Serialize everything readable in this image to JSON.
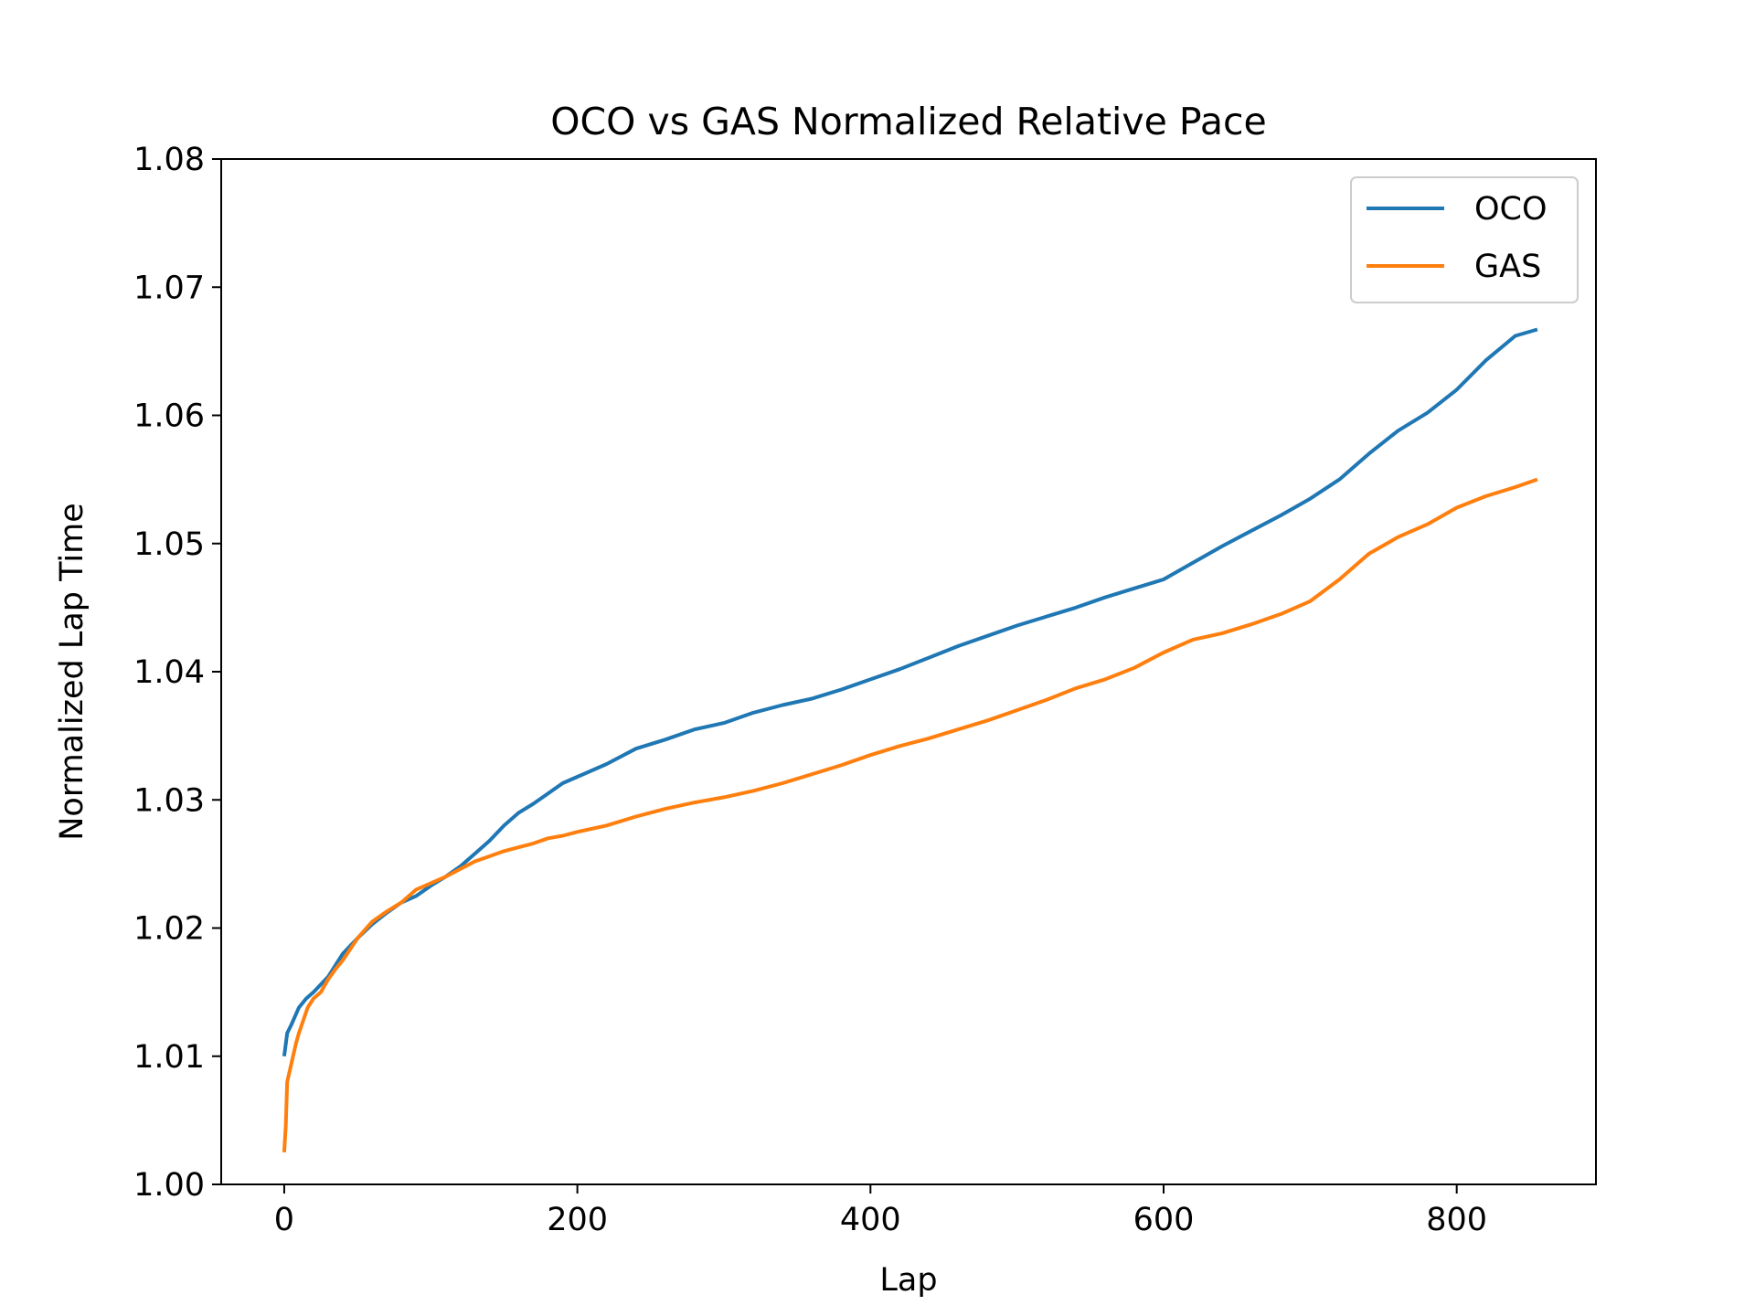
{
  "chart_data": {
    "type": "line",
    "title": "OCO vs GAS Normalized Relative Pace",
    "xlabel": "Lap",
    "ylabel": "Normalized Lap Time",
    "xlim": [
      -43,
      895
    ],
    "ylim": [
      1.0,
      1.08
    ],
    "xticks": [
      0,
      200,
      400,
      600,
      800
    ],
    "xtick_labels": [
      "0",
      "200",
      "400",
      "600",
      "800"
    ],
    "yticks": [
      1.0,
      1.01,
      1.02,
      1.03,
      1.04,
      1.05,
      1.06,
      1.07,
      1.08
    ],
    "ytick_labels": [
      "1.00",
      "1.01",
      "1.02",
      "1.03",
      "1.04",
      "1.05",
      "1.06",
      "1.07",
      "1.08"
    ],
    "grid": false,
    "legend_position": "top-right",
    "series": [
      {
        "name": "OCO",
        "color": "#1f77b4",
        "x": [
          0,
          2,
          5,
          10,
          15,
          20,
          30,
          40,
          50,
          60,
          70,
          80,
          90,
          100,
          110,
          120,
          130,
          140,
          150,
          160,
          170,
          180,
          190,
          200,
          220,
          240,
          260,
          280,
          300,
          320,
          340,
          360,
          380,
          400,
          420,
          440,
          460,
          480,
          500,
          520,
          540,
          560,
          580,
          600,
          620,
          640,
          660,
          680,
          700,
          720,
          740,
          760,
          780,
          800,
          820,
          840,
          855
        ],
        "y": [
          1.01,
          1.0118,
          1.0125,
          1.0138,
          1.0145,
          1.015,
          1.0162,
          1.018,
          1.0192,
          1.0203,
          1.0212,
          1.022,
          1.0225,
          1.0233,
          1.024,
          1.0248,
          1.0258,
          1.0268,
          1.028,
          1.029,
          1.0297,
          1.0305,
          1.0313,
          1.0318,
          1.0328,
          1.034,
          1.0347,
          1.0355,
          1.036,
          1.0368,
          1.0374,
          1.0379,
          1.0386,
          1.0394,
          1.0402,
          1.0411,
          1.042,
          1.0428,
          1.0436,
          1.0443,
          1.045,
          1.0458,
          1.0465,
          1.0472,
          1.0485,
          1.0498,
          1.051,
          1.0522,
          1.0535,
          1.055,
          1.057,
          1.0588,
          1.0602,
          1.062,
          1.0643,
          1.0662,
          1.0667
        ]
      },
      {
        "name": "GAS",
        "color": "#ff7f0e",
        "x": [
          0,
          1,
          2,
          4,
          6,
          8,
          10,
          13,
          16,
          20,
          25,
          30,
          35,
          40,
          50,
          60,
          70,
          80,
          90,
          100,
          110,
          120,
          130,
          140,
          150,
          160,
          170,
          180,
          190,
          200,
          220,
          240,
          260,
          280,
          300,
          320,
          340,
          360,
          380,
          400,
          420,
          440,
          460,
          480,
          500,
          520,
          540,
          560,
          580,
          600,
          620,
          640,
          660,
          680,
          700,
          720,
          740,
          760,
          780,
          800,
          820,
          840,
          855
        ],
        "y": [
          1.0025,
          1.0045,
          1.008,
          1.009,
          1.01,
          1.011,
          1.0118,
          1.0128,
          1.0138,
          1.0145,
          1.015,
          1.016,
          1.0168,
          1.0175,
          1.0192,
          1.0205,
          1.0213,
          1.022,
          1.023,
          1.0235,
          1.024,
          1.0246,
          1.0252,
          1.0256,
          1.026,
          1.0263,
          1.0266,
          1.027,
          1.0272,
          1.0275,
          1.028,
          1.0287,
          1.0293,
          1.0298,
          1.0302,
          1.0307,
          1.0313,
          1.032,
          1.0327,
          1.0335,
          1.0342,
          1.0348,
          1.0355,
          1.0362,
          1.037,
          1.0378,
          1.0387,
          1.0394,
          1.0403,
          1.0415,
          1.0425,
          1.043,
          1.0437,
          1.0445,
          1.0455,
          1.0472,
          1.0492,
          1.0505,
          1.0515,
          1.0528,
          1.0537,
          1.0544,
          1.055
        ]
      }
    ]
  }
}
